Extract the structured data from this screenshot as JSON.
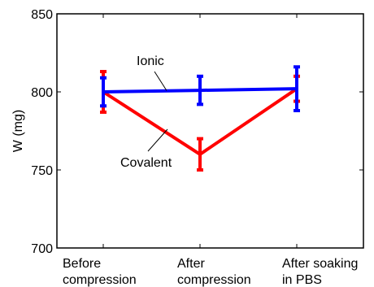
{
  "chart_data": {
    "type": "line",
    "title": "",
    "xlabel": "",
    "ylabel": "W (mg)",
    "ylim": [
      700,
      850
    ],
    "yticks": [
      700,
      750,
      800,
      850
    ],
    "categories": [
      "Before compression",
      "After compression",
      "After soaking in PBS"
    ],
    "category_lines": [
      [
        "Before",
        "compression"
      ],
      [
        "After",
        "compression"
      ],
      [
        "After soaking",
        "in PBS"
      ]
    ],
    "series": [
      {
        "name": "Ionic",
        "color": "#0000ff",
        "values": [
          800,
          801,
          802
        ],
        "errors": [
          9,
          9,
          14
        ]
      },
      {
        "name": "Covalent",
        "color": "#ff0000",
        "values": [
          800,
          760,
          802
        ],
        "errors": [
          13,
          10,
          8
        ]
      }
    ],
    "grid": false,
    "legend": "none",
    "annotations": [
      {
        "text": "Ionic",
        "series": "Ionic"
      },
      {
        "text": "Covalent",
        "series": "Covalent"
      }
    ]
  }
}
